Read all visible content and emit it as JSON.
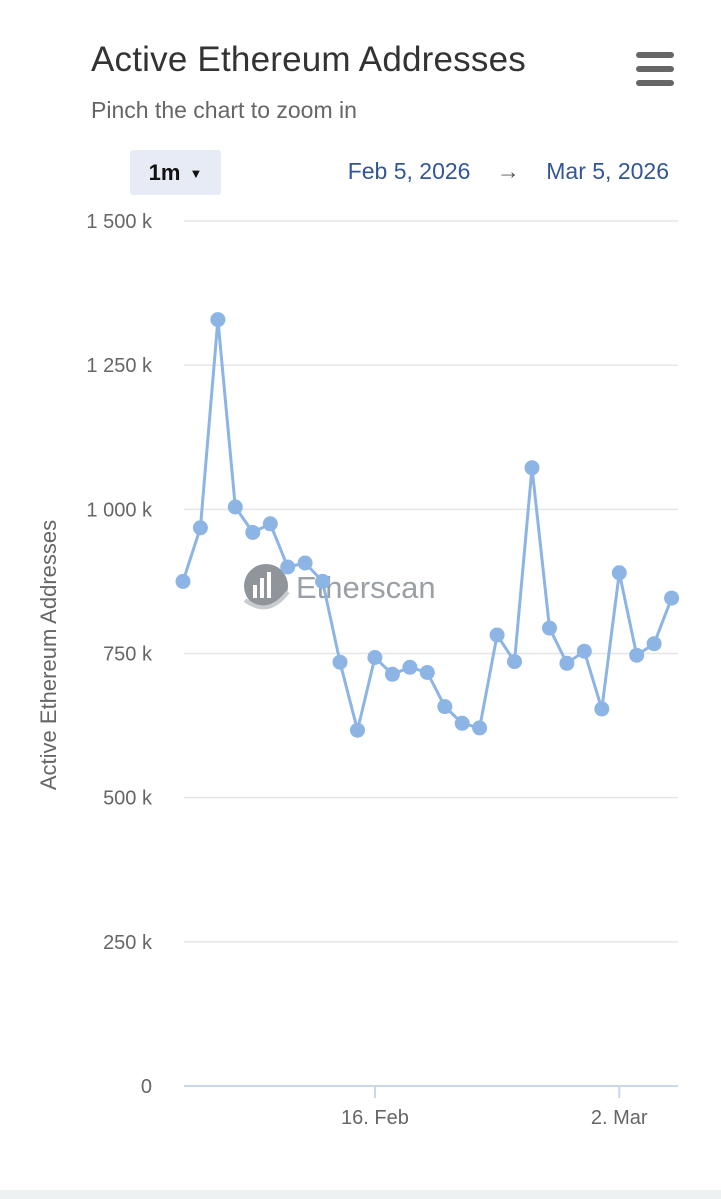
{
  "header": {
    "title": "Active Ethereum Addresses",
    "subtitle": "Pinch the chart to zoom in",
    "menu_icon": "hamburger-menu-icon"
  },
  "controls": {
    "range_label": "1m",
    "range_caret": "▼",
    "date_from": "Feb 5, 2026",
    "date_arrow": "→",
    "date_to": "Mar 5, 2026"
  },
  "watermark": {
    "text": "Etherscan"
  },
  "chart_data": {
    "type": "line",
    "title": "Active Ethereum Addresses",
    "ylabel": "Active Ethereum Addresses",
    "xlabel": "",
    "x_start": "2026-02-05",
    "x": [
      "2026-02-05",
      "2026-02-06",
      "2026-02-07",
      "2026-02-08",
      "2026-02-09",
      "2026-02-10",
      "2026-02-11",
      "2026-02-12",
      "2026-02-13",
      "2026-02-14",
      "2026-02-15",
      "2026-02-16",
      "2026-02-17",
      "2026-02-18",
      "2026-02-19",
      "2026-02-20",
      "2026-02-21",
      "2026-02-22",
      "2026-02-23",
      "2026-02-24",
      "2026-02-25",
      "2026-02-26",
      "2026-02-27",
      "2026-02-28",
      "2026-03-01",
      "2026-03-02",
      "2026-03-03",
      "2026-03-04",
      "2026-03-05"
    ],
    "series": [
      {
        "name": "",
        "color": "#8cb4e4",
        "values": [
          875000,
          968000,
          1329000,
          1004000,
          960000,
          975000,
          900000,
          907000,
          875000,
          735000,
          617000,
          743000,
          714000,
          726000,
          717000,
          658000,
          629000,
          621000,
          782000,
          736000,
          1072000,
          794000,
          733000,
          754000,
          654000,
          890000,
          747000,
          767000,
          846000
        ]
      }
    ],
    "ylim": [
      0,
      1500000
    ],
    "y_ticks": [
      0,
      250000,
      500000,
      750000,
      1000000,
      1250000,
      1500000
    ],
    "y_tick_labels": [
      "0",
      "250 k",
      "500 k",
      "750 k",
      "1 000 k",
      "1 250 k",
      "1 500 k"
    ],
    "x_ticks": [
      "2026-02-16",
      "2026-03-02"
    ],
    "x_tick_labels": [
      "16. Feb",
      "2. Mar"
    ],
    "grid": true,
    "legend": "none"
  }
}
